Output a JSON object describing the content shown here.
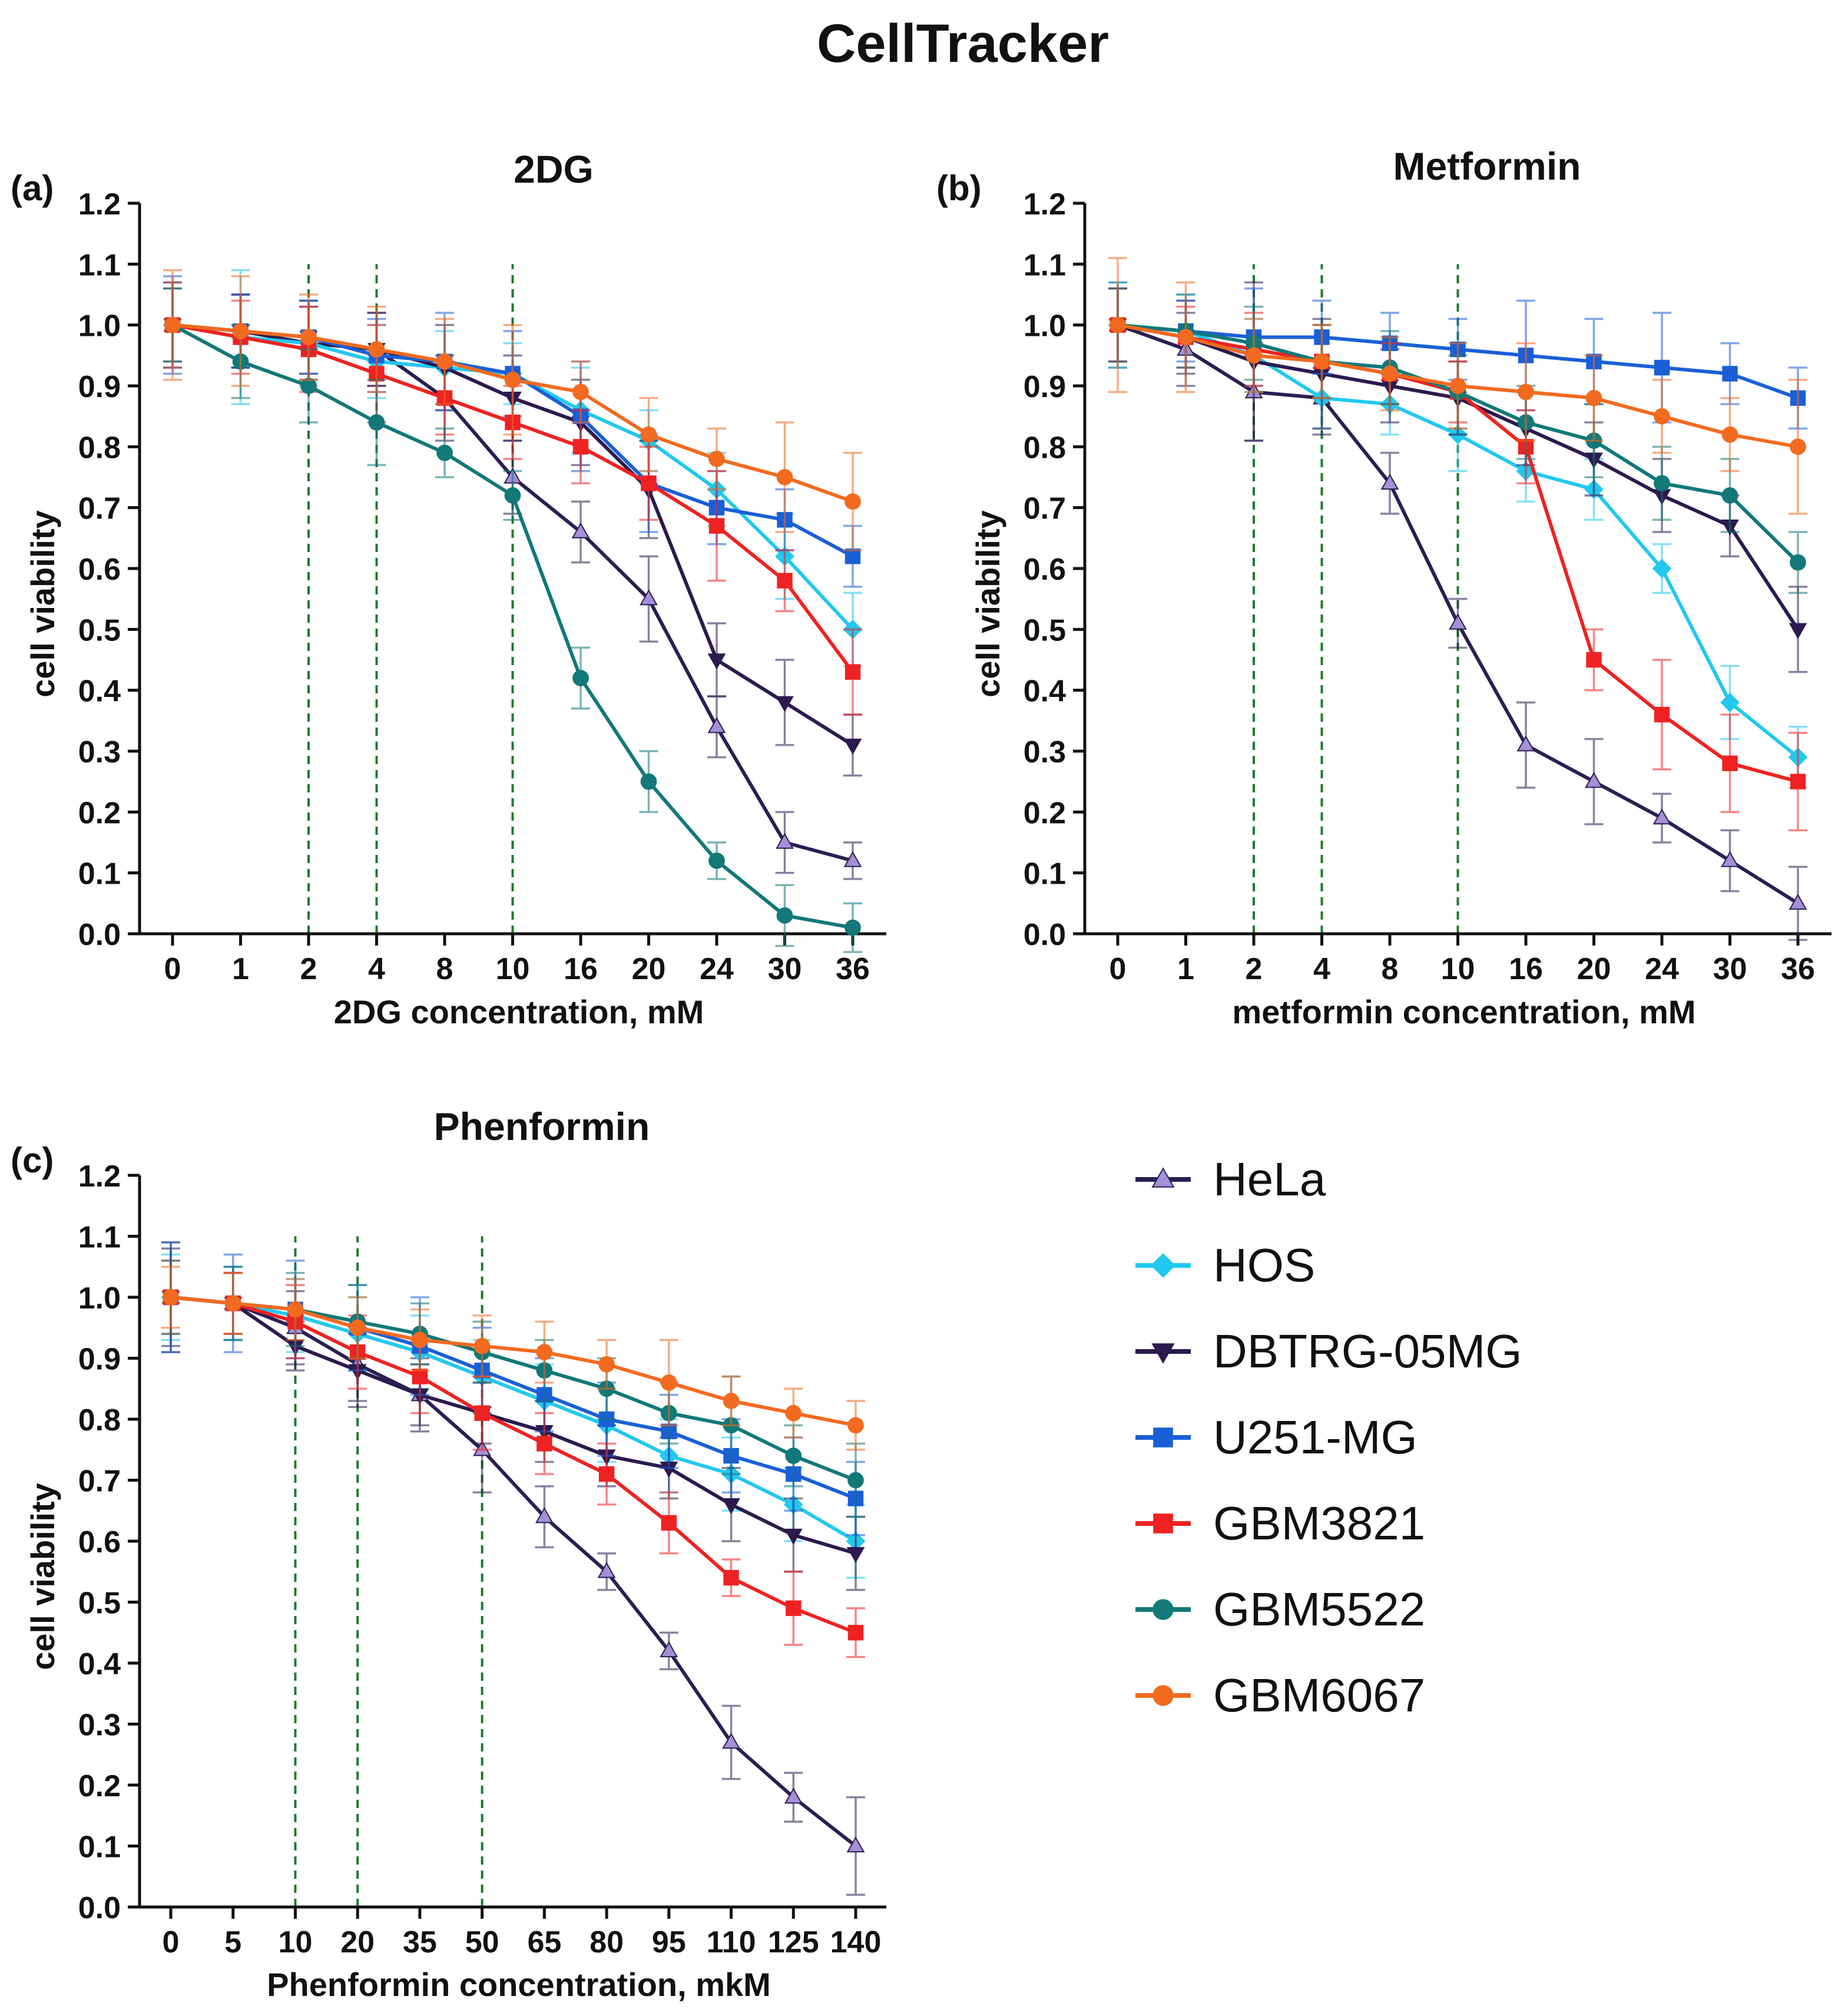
{
  "figure_title": "CellTracker",
  "series_styles": [
    {
      "name": "HeLa",
      "color": "#2a1f52",
      "marker": "triangle-up",
      "marker_color": "#a58fd6"
    },
    {
      "name": "HOS",
      "color": "#22c8ee",
      "marker": "diamond",
      "marker_color": "#22c8ee"
    },
    {
      "name": "DBTRG-05MG",
      "color": "#2b1a4e",
      "marker": "triangle-down",
      "marker_color": "#2b1a4e"
    },
    {
      "name": "U251-MG",
      "color": "#1a5fd6",
      "marker": "square",
      "marker_color": "#1a5fd6"
    },
    {
      "name": "GBM3821",
      "color": "#ee2222",
      "marker": "square",
      "marker_color": "#ee2222"
    },
    {
      "name": "GBM5522",
      "color": "#127878",
      "marker": "circle",
      "marker_color": "#127878"
    },
    {
      "name": "GBM6067",
      "color": "#f26a1f",
      "marker": "circle",
      "marker_color": "#f26a1f"
    }
  ],
  "legend": [
    "HeLa",
    "HOS",
    "DBTRG-05MG",
    "U251-MG",
    "GBM3821",
    "GBM5522",
    "GBM6067"
  ],
  "chart_data": [
    {
      "panel_label": "(a)",
      "type": "line",
      "title": "2DG",
      "xlabel": "2DG concentration, mM",
      "ylabel": "cell viability",
      "categories": [
        "0",
        "1",
        "2",
        "4",
        "8",
        "10",
        "16",
        "20",
        "24",
        "30",
        "36"
      ],
      "ylim": [
        0,
        1.2
      ],
      "yticks": [
        "0.0",
        "0.1",
        "0.2",
        "0.3",
        "0.4",
        "0.5",
        "0.6",
        "0.7",
        "0.8",
        "0.9",
        "1.0",
        "1.1",
        "1.2"
      ],
      "reference_lines": [
        "2",
        "4",
        "10"
      ],
      "series": [
        {
          "name": "HeLa",
          "values": [
            1.0,
            0.99,
            0.97,
            0.96,
            0.88,
            0.75,
            0.66,
            0.55,
            0.34,
            0.15,
            0.12
          ],
          "errors": [
            0.07,
            0.06,
            0.06,
            0.06,
            0.07,
            0.06,
            0.05,
            0.07,
            0.05,
            0.05,
            0.03
          ]
        },
        {
          "name": "HOS",
          "values": [
            1.0,
            0.98,
            0.97,
            0.94,
            0.93,
            0.92,
            0.86,
            0.81,
            0.73,
            0.62,
            0.5
          ],
          "errors": [
            0.07,
            0.11,
            0.07,
            0.06,
            0.06,
            0.05,
            0.07,
            0.05,
            0.06,
            0.07,
            0.06
          ]
        },
        {
          "name": "DBTRG-05MG",
          "values": [
            1.0,
            0.99,
            0.98,
            0.96,
            0.93,
            0.88,
            0.84,
            0.73,
            0.45,
            0.38,
            0.31
          ],
          "errors": [
            0.06,
            0.06,
            0.06,
            0.06,
            0.07,
            0.07,
            0.07,
            0.08,
            0.06,
            0.07,
            0.05
          ]
        },
        {
          "name": "U251-MG",
          "values": [
            1.0,
            0.99,
            0.98,
            0.95,
            0.94,
            0.92,
            0.85,
            0.74,
            0.7,
            0.68,
            0.62
          ],
          "errors": [
            0.08,
            0.06,
            0.06,
            0.06,
            0.08,
            0.07,
            0.09,
            0.08,
            0.06,
            0.05,
            0.05
          ]
        },
        {
          "name": "GBM3821",
          "values": [
            1.0,
            0.98,
            0.96,
            0.92,
            0.88,
            0.84,
            0.8,
            0.74,
            0.67,
            0.58,
            0.43
          ],
          "errors": [
            0.07,
            0.06,
            0.07,
            0.08,
            0.06,
            0.06,
            0.06,
            0.06,
            0.09,
            0.05,
            0.07
          ]
        },
        {
          "name": "GBM5522",
          "values": [
            1.0,
            0.94,
            0.9,
            0.84,
            0.79,
            0.72,
            0.42,
            0.25,
            0.12,
            0.03,
            0.01
          ],
          "errors": [
            0.06,
            0.06,
            0.06,
            0.07,
            0.04,
            0.04,
            0.05,
            0.05,
            0.03,
            0.05,
            0.04
          ]
        },
        {
          "name": "GBM6067",
          "values": [
            1.0,
            0.99,
            0.98,
            0.96,
            0.94,
            0.91,
            0.89,
            0.82,
            0.78,
            0.75,
            0.71
          ],
          "errors": [
            0.09,
            0.09,
            0.07,
            0.07,
            0.07,
            0.09,
            0.05,
            0.06,
            0.05,
            0.09,
            0.08
          ]
        }
      ]
    },
    {
      "panel_label": "(b)",
      "type": "line",
      "title": "Metformin",
      "xlabel": "metformin concentration, mM",
      "ylabel": "cell viability",
      "categories": [
        "0",
        "1",
        "2",
        "4",
        "8",
        "10",
        "16",
        "20",
        "24",
        "30",
        "36"
      ],
      "ylim": [
        0,
        1.2
      ],
      "yticks": [
        "0.0",
        "0.1",
        "0.2",
        "0.3",
        "0.4",
        "0.5",
        "0.6",
        "0.7",
        "0.8",
        "0.9",
        "1.0",
        "1.1",
        "1.2"
      ],
      "reference_lines": [
        "2",
        "4",
        "10"
      ],
      "series": [
        {
          "name": "HeLa",
          "values": [
            1.0,
            0.96,
            0.89,
            0.88,
            0.74,
            0.51,
            0.31,
            0.25,
            0.19,
            0.12,
            0.05
          ],
          "errors": [
            0.07,
            0.06,
            0.08,
            0.06,
            0.05,
            0.04,
            0.07,
            0.07,
            0.04,
            0.05,
            0.06
          ]
        },
        {
          "name": "HOS",
          "values": [
            1.0,
            0.99,
            0.95,
            0.88,
            0.87,
            0.82,
            0.76,
            0.73,
            0.6,
            0.38,
            0.29
          ],
          "errors": [
            0.07,
            0.06,
            0.06,
            0.05,
            0.05,
            0.06,
            0.05,
            0.05,
            0.04,
            0.06,
            0.05
          ]
        },
        {
          "name": "DBTRG-05MG",
          "values": [
            1.0,
            0.98,
            0.94,
            0.92,
            0.9,
            0.88,
            0.83,
            0.78,
            0.72,
            0.67,
            0.5
          ],
          "errors": [
            0.06,
            0.06,
            0.13,
            0.09,
            0.06,
            0.06,
            0.06,
            0.06,
            0.06,
            0.05,
            0.07
          ]
        },
        {
          "name": "U251-MG",
          "values": [
            1.0,
            0.99,
            0.98,
            0.98,
            0.97,
            0.96,
            0.95,
            0.94,
            0.93,
            0.92,
            0.88
          ],
          "errors": [
            0.06,
            0.05,
            0.08,
            0.06,
            0.05,
            0.05,
            0.09,
            0.07,
            0.09,
            0.05,
            0.05
          ]
        },
        {
          "name": "GBM3821",
          "values": [
            1.0,
            0.98,
            0.96,
            0.94,
            0.92,
            0.89,
            0.8,
            0.45,
            0.36,
            0.28,
            0.25
          ],
          "errors": [
            0.06,
            0.05,
            0.06,
            0.06,
            0.05,
            0.05,
            0.06,
            0.05,
            0.09,
            0.08,
            0.08
          ]
        },
        {
          "name": "GBM5522",
          "values": [
            1.0,
            0.99,
            0.97,
            0.94,
            0.93,
            0.89,
            0.84,
            0.81,
            0.74,
            0.72,
            0.61
          ],
          "errors": [
            0.06,
            0.06,
            0.06,
            0.06,
            0.06,
            0.06,
            0.06,
            0.06,
            0.06,
            0.06,
            0.05
          ]
        },
        {
          "name": "GBM6067",
          "values": [
            1.0,
            0.98,
            0.95,
            0.94,
            0.92,
            0.9,
            0.89,
            0.88,
            0.85,
            0.82,
            0.8
          ],
          "errors": [
            0.11,
            0.09,
            0.06,
            0.06,
            0.06,
            0.07,
            0.08,
            0.07,
            0.06,
            0.06,
            0.11
          ]
        }
      ]
    },
    {
      "panel_label": "(c)",
      "type": "line",
      "title": "Phenformin",
      "xlabel": "Phenformin concentration, mkM",
      "ylabel": "cell viability",
      "categories": [
        "0",
        "5",
        "10",
        "20",
        "35",
        "50",
        "65",
        "80",
        "95",
        "110",
        "125",
        "140"
      ],
      "ylim": [
        0,
        1.2
      ],
      "yticks": [
        "0.0",
        "0.1",
        "0.2",
        "0.3",
        "0.4",
        "0.5",
        "0.6",
        "0.7",
        "0.8",
        "0.9",
        "1.0",
        "1.1",
        "1.2"
      ],
      "reference_lines": [
        "10",
        "20",
        "50"
      ],
      "series": [
        {
          "name": "HeLa",
          "values": [
            1.0,
            0.99,
            0.95,
            0.89,
            0.84,
            0.75,
            0.64,
            0.55,
            0.42,
            0.27,
            0.18,
            0.1
          ],
          "errors": [
            0.08,
            0.06,
            0.06,
            0.06,
            0.06,
            0.07,
            0.05,
            0.03,
            0.03,
            0.06,
            0.04,
            0.08
          ]
        },
        {
          "name": "HOS",
          "values": [
            1.0,
            0.99,
            0.97,
            0.94,
            0.91,
            0.87,
            0.83,
            0.79,
            0.74,
            0.71,
            0.66,
            0.6
          ],
          "errors": [
            0.07,
            0.06,
            0.06,
            0.06,
            0.06,
            0.06,
            0.06,
            0.06,
            0.06,
            0.06,
            0.06,
            0.06
          ]
        },
        {
          "name": "DBTRG-05MG",
          "values": [
            1.0,
            0.99,
            0.92,
            0.88,
            0.84,
            0.81,
            0.78,
            0.74,
            0.72,
            0.66,
            0.61,
            0.58
          ],
          "errors": [
            0.09,
            0.05,
            0.04,
            0.06,
            0.05,
            0.05,
            0.05,
            0.05,
            0.05,
            0.06,
            0.06,
            0.06
          ]
        },
        {
          "name": "U251-MG",
          "values": [
            1.0,
            0.99,
            0.98,
            0.95,
            0.92,
            0.88,
            0.84,
            0.8,
            0.78,
            0.74,
            0.71,
            0.67
          ],
          "errors": [
            0.09,
            0.08,
            0.08,
            0.07,
            0.08,
            0.07,
            0.06,
            0.06,
            0.06,
            0.06,
            0.06,
            0.06
          ]
        },
        {
          "name": "GBM3821",
          "values": [
            1.0,
            0.99,
            0.96,
            0.91,
            0.87,
            0.81,
            0.76,
            0.71,
            0.63,
            0.54,
            0.49,
            0.45
          ],
          "errors": [
            0.06,
            0.05,
            0.06,
            0.06,
            0.06,
            0.06,
            0.05,
            0.05,
            0.05,
            0.03,
            0.06,
            0.04
          ]
        },
        {
          "name": "GBM5522",
          "values": [
            1.0,
            0.99,
            0.98,
            0.96,
            0.94,
            0.91,
            0.88,
            0.85,
            0.81,
            0.79,
            0.74,
            0.7
          ],
          "errors": [
            0.06,
            0.06,
            0.06,
            0.06,
            0.05,
            0.05,
            0.05,
            0.05,
            0.05,
            0.08,
            0.05,
            0.06
          ]
        },
        {
          "name": "GBM6067",
          "values": [
            1.0,
            0.99,
            0.98,
            0.95,
            0.93,
            0.92,
            0.91,
            0.89,
            0.86,
            0.83,
            0.81,
            0.79
          ],
          "errors": [
            0.05,
            0.05,
            0.05,
            0.05,
            0.05,
            0.05,
            0.05,
            0.04,
            0.07,
            0.04,
            0.04,
            0.04
          ]
        }
      ]
    }
  ]
}
